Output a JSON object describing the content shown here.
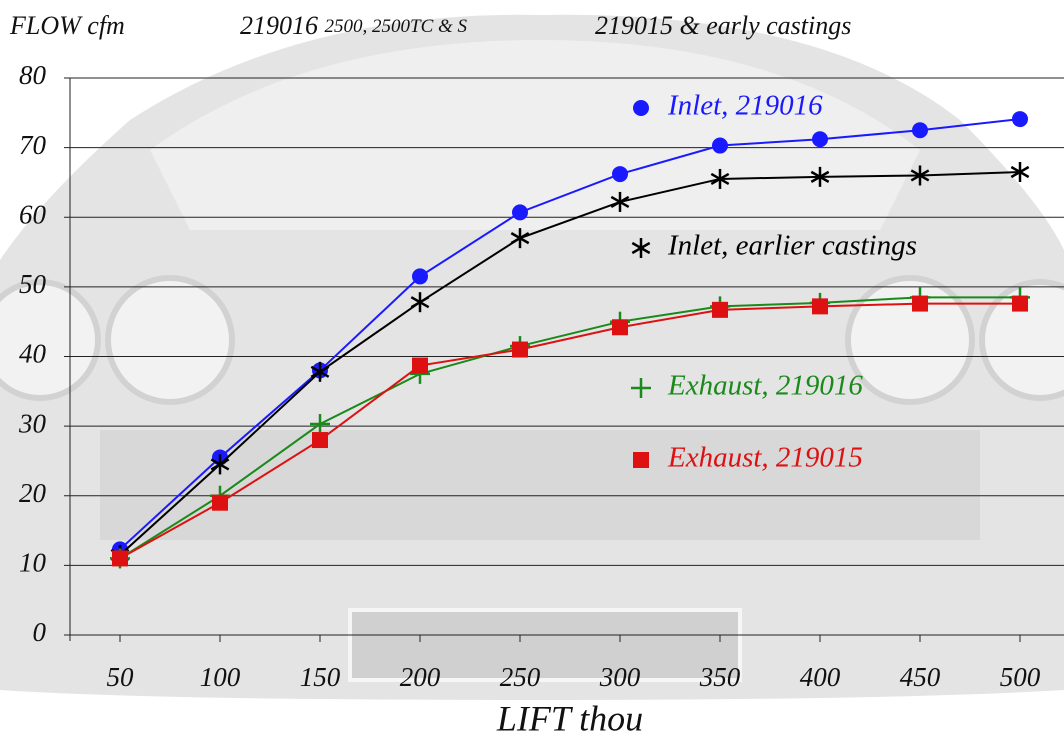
{
  "chart_data": {
    "type": "line",
    "y_label": "FLOW cfm",
    "subtitle_left": "219016",
    "subtitle_left_small": "2500, 2500TC & S",
    "subtitle_right": "219015 & early castings",
    "x_label": "LIFT thou",
    "x": [
      50,
      100,
      150,
      200,
      250,
      300,
      350,
      400,
      450,
      500
    ],
    "xlim": [
      25,
      522
    ],
    "xticks": [
      50,
      100,
      150,
      200,
      250,
      300,
      350,
      400,
      450,
      500
    ],
    "ylim": [
      0,
      80
    ],
    "yticks": [
      0,
      10,
      20,
      30,
      40,
      50,
      60,
      70,
      80
    ],
    "grid": true,
    "series": [
      {
        "name": "Inlet, 219016",
        "color": "#1a1aff",
        "marker": "circle",
        "values": [
          12.3,
          25.5,
          38,
          51.5,
          60.7,
          66.2,
          70.3,
          71.2,
          72.5,
          74.1
        ]
      },
      {
        "name": "Inlet, earlier castings",
        "color": "#000000",
        "marker": "asterisk",
        "values": [
          11.5,
          24.5,
          37.8,
          47.8,
          57,
          62.2,
          65.5,
          65.8,
          66,
          66.5
        ]
      },
      {
        "name": "Exhaust, 219016",
        "color": "#1a8a1a",
        "marker": "plus",
        "values": [
          11,
          20,
          30.3,
          37.5,
          41.5,
          45,
          47.2,
          47.7,
          48.5,
          48.5
        ]
      },
      {
        "name": "Exhaust, 219015",
        "color": "#dd1111",
        "marker": "square",
        "values": [
          11,
          19,
          28,
          38.7,
          41,
          44.2,
          46.7,
          47.2,
          47.6,
          47.6
        ]
      }
    ]
  }
}
